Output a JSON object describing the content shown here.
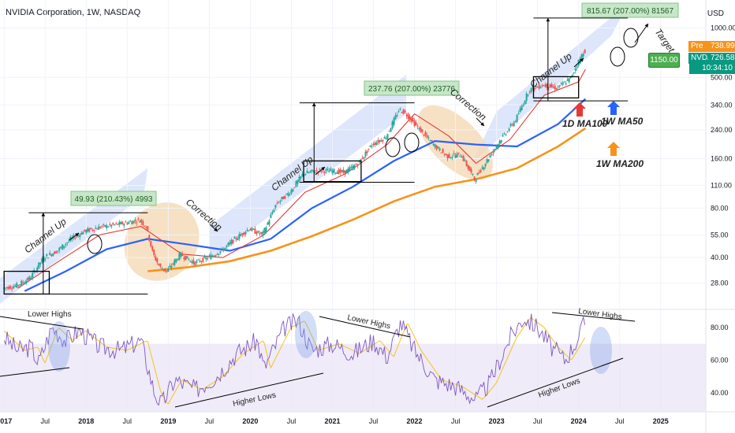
{
  "header": {
    "symbol": "NVIDIA Corporation, 1W, NASDAQ",
    "currency": "USD"
  },
  "prices": {
    "pre_label": "Pre",
    "pre_value": "738.99",
    "ticker": "NVDA",
    "last_value": "726.58",
    "countdown": "10:34:10",
    "target_value": "1150.00"
  },
  "colors": {
    "ma50": "#2962ff",
    "ma100": "#e53935",
    "ma200": "#f7931a",
    "rsi": "#7e57c2",
    "rsi_ma": "#f5c518",
    "channel": "#b3c8f5",
    "correction": "#f5d9b5",
    "up": "#26a69a",
    "down": "#ef5350",
    "target_box": "#4caf50"
  },
  "chart_data": {
    "type": "candlestick",
    "scale": "log",
    "y_ticks": [
      28.0,
      40.0,
      55.0,
      80.0,
      110.0,
      160.0,
      240.0,
      340.0,
      500.0,
      1000.0
    ],
    "x_ticks": [
      "2017",
      "Jul",
      "2018",
      "Jul",
      "2019",
      "Jul",
      "2020",
      "Jul",
      "2021",
      "Jul",
      "2022",
      "Jul",
      "2023",
      "Jul",
      "2024",
      "Jul",
      "2025"
    ],
    "rsi_ticks": [
      40.0,
      60.0,
      80.0
    ],
    "annotations": {
      "channel_up_1": "Channel Up",
      "channel_up_2": "Channel Up",
      "channel_up_3": "Channel Up",
      "correction_1": "Correction",
      "correction_2": "Correction",
      "measure_1": "49.93 (210.43%) 4993",
      "measure_2": "237.76 (207.00%) 23776",
      "measure_3": "815.67 (207.00%) 81567",
      "target": "Target",
      "ma100_label": "1D MA100",
      "ma50_label": "1W MA50",
      "ma200_label": "1W MA200",
      "rsi_lower_highs_1": "Lower Highs",
      "rsi_lower_highs_2": "Lower Highs",
      "rsi_lower_highs_3": "Lower Highs",
      "rsi_higher_lows_1": "Higher Lows",
      "rsi_higher_lows_2": "Higher Lows"
    },
    "price_path": [
      [
        "2017-01",
        26
      ],
      [
        "2017-03",
        27
      ],
      [
        "2017-05",
        30
      ],
      [
        "2017-07",
        40
      ],
      [
        "2017-09",
        44
      ],
      [
        "2017-11",
        52
      ],
      [
        "2018-01",
        58
      ],
      [
        "2018-03",
        61
      ],
      [
        "2018-05",
        63
      ],
      [
        "2018-07",
        65
      ],
      [
        "2018-09",
        68
      ],
      [
        "2018-10",
        62
      ],
      [
        "2018-11",
        42
      ],
      [
        "2018-12",
        35
      ],
      [
        "2019-01",
        33
      ],
      [
        "2019-03",
        42
      ],
      [
        "2019-05",
        37
      ],
      [
        "2019-07",
        40
      ],
      [
        "2019-09",
        44
      ],
      [
        "2019-11",
        52
      ],
      [
        "2020-01",
        60
      ],
      [
        "2020-03",
        55
      ],
      [
        "2020-05",
        85
      ],
      [
        "2020-07",
        100
      ],
      [
        "2020-09",
        130
      ],
      [
        "2020-11",
        135
      ],
      [
        "2021-01",
        135
      ],
      [
        "2021-03",
        132
      ],
      [
        "2021-05",
        150
      ],
      [
        "2021-07",
        195
      ],
      [
        "2021-09",
        215
      ],
      [
        "2021-11",
        320
      ],
      [
        "2021-12",
        300
      ],
      [
        "2022-02",
        240
      ],
      [
        "2022-04",
        195
      ],
      [
        "2022-06",
        165
      ],
      [
        "2022-08",
        170
      ],
      [
        "2022-10",
        120
      ],
      [
        "2022-12",
        160
      ],
      [
        "2023-02",
        215
      ],
      [
        "2023-04",
        275
      ],
      [
        "2023-06",
        420
      ],
      [
        "2023-08",
        450
      ],
      [
        "2023-10",
        430
      ],
      [
        "2023-12",
        490
      ],
      [
        "2024-01",
        600
      ],
      [
        "2024-02",
        726
      ]
    ],
    "ma50_path": [
      [
        "2017-04",
        25
      ],
      [
        "2017-10",
        33
      ],
      [
        "2018-04",
        45
      ],
      [
        "2018-10",
        52
      ],
      [
        "2019-04",
        48
      ],
      [
        "2019-10",
        44
      ],
      [
        "2020-04",
        52
      ],
      [
        "2020-10",
        80
      ],
      [
        "2021-04",
        108
      ],
      [
        "2021-10",
        155
      ],
      [
        "2022-04",
        205
      ],
      [
        "2022-10",
        195
      ],
      [
        "2023-04",
        190
      ],
      [
        "2023-10",
        260
      ],
      [
        "2024-02",
        370
      ]
    ],
    "ma200_path": [
      [
        "2018-10",
        33
      ],
      [
        "2019-04",
        35
      ],
      [
        "2019-10",
        38
      ],
      [
        "2020-04",
        44
      ],
      [
        "2020-10",
        54
      ],
      [
        "2021-04",
        68
      ],
      [
        "2021-10",
        88
      ],
      [
        "2022-04",
        108
      ],
      [
        "2022-10",
        120
      ],
      [
        "2023-04",
        140
      ],
      [
        "2023-10",
        190
      ],
      [
        "2024-02",
        245
      ]
    ],
    "ma100_path": [
      [
        "2017-03",
        26
      ],
      [
        "2017-09",
        38
      ],
      [
        "2018-03",
        55
      ],
      [
        "2018-09",
        62
      ],
      [
        "2019-03",
        42
      ],
      [
        "2019-09",
        40
      ],
      [
        "2020-03",
        55
      ],
      [
        "2020-09",
        100
      ],
      [
        "2021-03",
        130
      ],
      [
        "2021-09",
        195
      ],
      [
        "2022-01",
        300
      ],
      [
        "2022-06",
        220
      ],
      [
        "2022-10",
        150
      ],
      [
        "2023-03",
        210
      ],
      [
        "2023-08",
        390
      ],
      [
        "2024-01",
        470
      ],
      [
        "2024-02",
        560
      ]
    ],
    "rsi_path": [
      [
        "2017-01",
        74
      ],
      [
        "2017-03",
        66
      ],
      [
        "2017-05",
        68
      ],
      [
        "2017-06",
        58
      ],
      [
        "2017-08",
        80
      ],
      [
        "2017-10",
        72
      ],
      [
        "2017-12",
        78
      ],
      [
        "2018-03",
        68
      ],
      [
        "2018-06",
        66
      ],
      [
        "2018-09",
        72
      ],
      [
        "2018-11",
        40
      ],
      [
        "2018-12",
        33
      ],
      [
        "2019-02",
        48
      ],
      [
        "2019-05",
        42
      ],
      [
        "2019-08",
        50
      ],
      [
        "2019-11",
        64
      ],
      [
        "2020-02",
        72
      ],
      [
        "2020-03",
        55
      ],
      [
        "2020-06",
        80
      ],
      [
        "2020-08",
        84
      ],
      [
        "2020-10",
        66
      ],
      [
        "2021-01",
        70
      ],
      [
        "2021-04",
        64
      ],
      [
        "2021-07",
        72
      ],
      [
        "2021-09",
        62
      ],
      [
        "2021-11",
        83
      ],
      [
        "2022-01",
        66
      ],
      [
        "2022-04",
        48
      ],
      [
        "2022-07",
        44
      ],
      [
        "2022-10",
        36
      ],
      [
        "2022-12",
        46
      ],
      [
        "2023-03",
        74
      ],
      [
        "2023-05",
        86
      ],
      [
        "2023-07",
        80
      ],
      [
        "2023-09",
        68
      ],
      [
        "2023-11",
        60
      ],
      [
        "2024-01",
        74
      ],
      [
        "2024-02",
        84
      ]
    ],
    "measure_levels": [
      {
        "from_price": 24,
        "to_price": 75
      },
      {
        "from_price": 115,
        "to_price": 350
      },
      {
        "from_price": 360,
        "to_price": 1150
      }
    ]
  }
}
